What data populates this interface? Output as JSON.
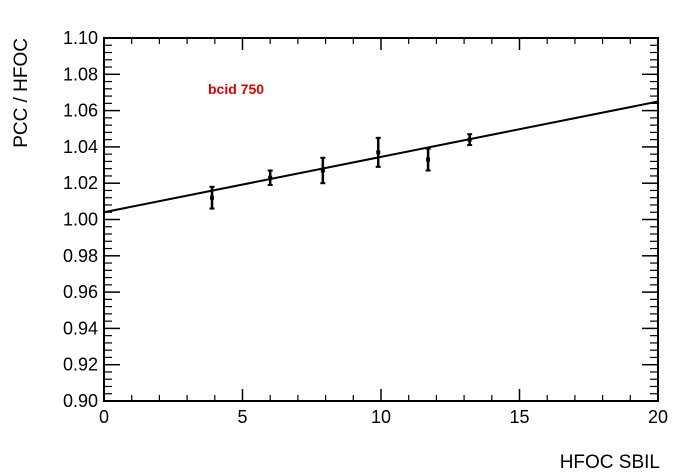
{
  "chart_data": {
    "type": "scatter",
    "xlabel": "HFOC  SBIL",
    "ylabel": "PCC / HFOC",
    "annotation": "bcid 750",
    "annotation_color": "#e00000",
    "xlim": [
      0,
      20
    ],
    "ylim": [
      0.9,
      1.1
    ],
    "x_ticks": [
      0,
      5,
      10,
      15,
      20
    ],
    "x_tick_labels": [
      "0",
      "5",
      "10",
      "15",
      "20"
    ],
    "y_ticks": [
      0.9,
      0.92,
      0.94,
      0.96,
      0.98,
      1.0,
      1.02,
      1.04,
      1.06,
      1.08,
      1.1
    ],
    "y_tick_labels": [
      "0.90",
      "0.92",
      "0.94",
      "0.96",
      "0.98",
      "1.00",
      "1.02",
      "1.04",
      "1.06",
      "1.08",
      "1.10"
    ],
    "grid": false,
    "series": [
      {
        "points": [
          {
            "x": 3.9,
            "y": 1.012,
            "err": 0.006
          },
          {
            "x": 6.0,
            "y": 1.023,
            "err": 0.004
          },
          {
            "x": 7.9,
            "y": 1.027,
            "err": 0.007
          },
          {
            "x": 9.9,
            "y": 1.037,
            "err": 0.008
          },
          {
            "x": 11.7,
            "y": 1.033,
            "err": 0.006
          },
          {
            "x": 13.2,
            "y": 1.044,
            "err": 0.003
          }
        ]
      }
    ],
    "fit": {
      "x": [
        0,
        20
      ],
      "y": [
        1.004,
        1.065
      ]
    }
  }
}
